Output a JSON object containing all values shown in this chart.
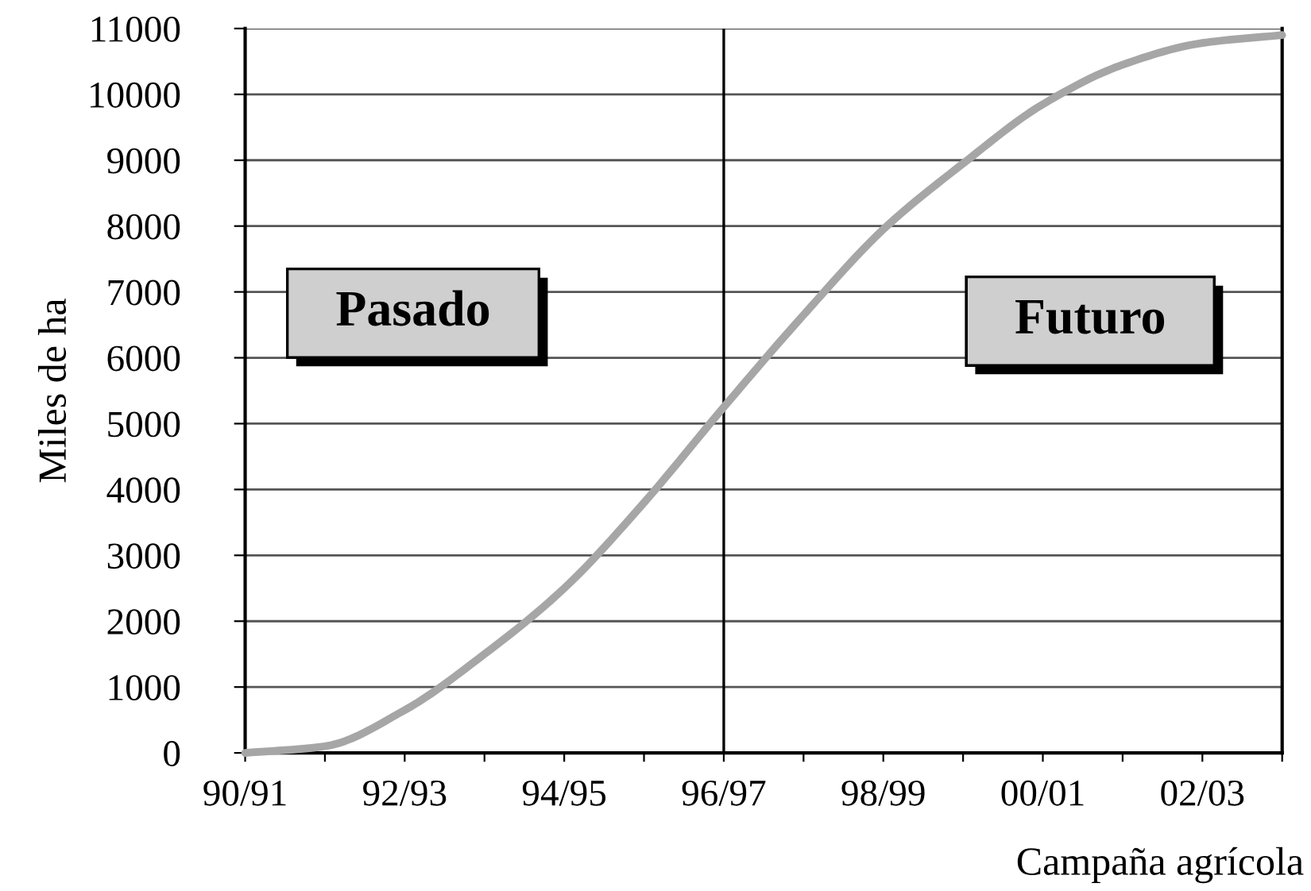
{
  "chart_data": {
    "type": "line",
    "xlabel": "Campaña agrícola",
    "ylabel": "Miles de ha",
    "categories": [
      "90/91",
      null,
      "92/93",
      null,
      "94/95",
      null,
      "96/97",
      null,
      "98/99",
      null,
      "00/01",
      null,
      "02/03",
      null
    ],
    "series": [
      {
        "color": "#a6a6a6",
        "values": [
          0,
          100,
          650,
          1500,
          2500,
          3800,
          5250,
          6650,
          7950,
          8950,
          9850,
          10450,
          10780,
          10900
        ]
      }
    ],
    "ylim": [
      0,
      11000
    ],
    "yticks": [
      0,
      1000,
      2000,
      3000,
      4000,
      5000,
      6000,
      7000,
      8000,
      9000,
      10000,
      11000
    ],
    "grid": "y",
    "ref_lines": [
      {
        "axis": "x",
        "value": "96/97",
        "color": "#000000"
      }
    ],
    "annotations": [
      "Pasado",
      "Futuro"
    ]
  }
}
